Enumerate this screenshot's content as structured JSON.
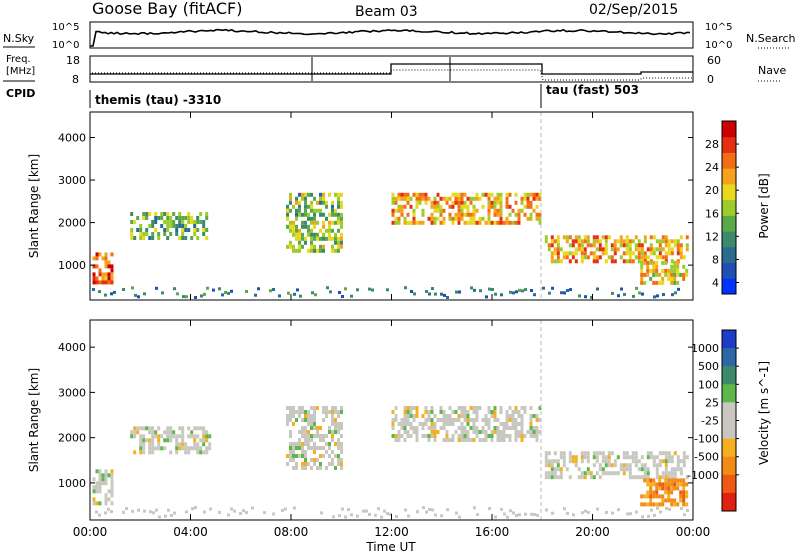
{
  "header": {
    "station": "Goose Bay (fitACF)",
    "beam": "Beam 03",
    "date": "02/Sep/2015"
  },
  "noise_panel": {
    "left_label": "N.Sky",
    "right_label": "N.Search",
    "left_ticks": [
      "10^5",
      "10^0"
    ],
    "right_ticks": [
      "10^5",
      "10^0"
    ]
  },
  "freq_panel": {
    "left_label_line1": "Freq.",
    "left_label_line2": "[MHz]",
    "right_label": "Nave",
    "left_ticks": [
      "18",
      "8"
    ],
    "right_ticks": [
      "60",
      "0"
    ]
  },
  "cpid_panel": {
    "label": "CPID",
    "mode1": "themis (tau) -3310",
    "mode2": "tau (fast) 503"
  },
  "power_panel": {
    "ylabel": "Slant Range [km]",
    "colorbar_label": "Power [dB]",
    "colorbar_ticks": [
      "28",
      "24",
      "20",
      "16",
      "12",
      "8",
      "4"
    ],
    "colors": [
      "#0033ff",
      "#1f4fb5",
      "#2b6b8f",
      "#3c8a6c",
      "#5aa84a",
      "#9ccc2a",
      "#e8d81e",
      "#f6a21c",
      "#f26d14",
      "#e43010",
      "#cc0000"
    ]
  },
  "velocity_panel": {
    "ylabel": "Slant Range [km]",
    "colorbar_label": "Velocity [m s^-1]",
    "colorbar_ticks": [
      "1000",
      "500",
      "100",
      "25",
      "-25",
      "-100",
      "-500",
      "-1000"
    ],
    "colors": [
      "#1f3cc9",
      "#2e67a8",
      "#3d8a6a",
      "#5db849",
      "#c8c8c0",
      "#c8c8c0",
      "#f4b020",
      "#f28a18",
      "#ee5a14",
      "#e02010"
    ]
  },
  "chart_data": {
    "type": "heatmap",
    "xlabel": "Time UT",
    "x_ticks": [
      "00:00",
      "04:00",
      "08:00",
      "12:00",
      "16:00",
      "20:00",
      "00:00"
    ],
    "x_range_hours": [
      0,
      24
    ],
    "y_ticks": [
      "1000",
      "2000",
      "3000",
      "4000"
    ],
    "y_range_km": [
      180,
      4600
    ],
    "mode_change_hour": 18.0,
    "scatter_regions": [
      {
        "t0": 0.1,
        "t1": 0.9,
        "r0": 550,
        "r1": 1300,
        "power_db": 24,
        "velocity": -10
      },
      {
        "t0": 1.6,
        "t1": 4.8,
        "r0": 1650,
        "r1": 2250,
        "power_db": 12,
        "velocity": 0
      },
      {
        "t0": 7.8,
        "t1": 10.0,
        "r0": 1350,
        "r1": 2700,
        "power_db": 14,
        "velocity": 0
      },
      {
        "t0": 12.0,
        "t1": 17.9,
        "r0": 1950,
        "r1": 2700,
        "power_db": 20,
        "velocity": 0
      },
      {
        "t0": 18.1,
        "t1": 23.8,
        "r0": 1100,
        "r1": 1700,
        "power_db": 20,
        "velocity": 0
      },
      {
        "t0": 21.9,
        "t1": 23.7,
        "r0": 550,
        "r1": 1100,
        "power_db": 18,
        "velocity": -200
      }
    ]
  }
}
